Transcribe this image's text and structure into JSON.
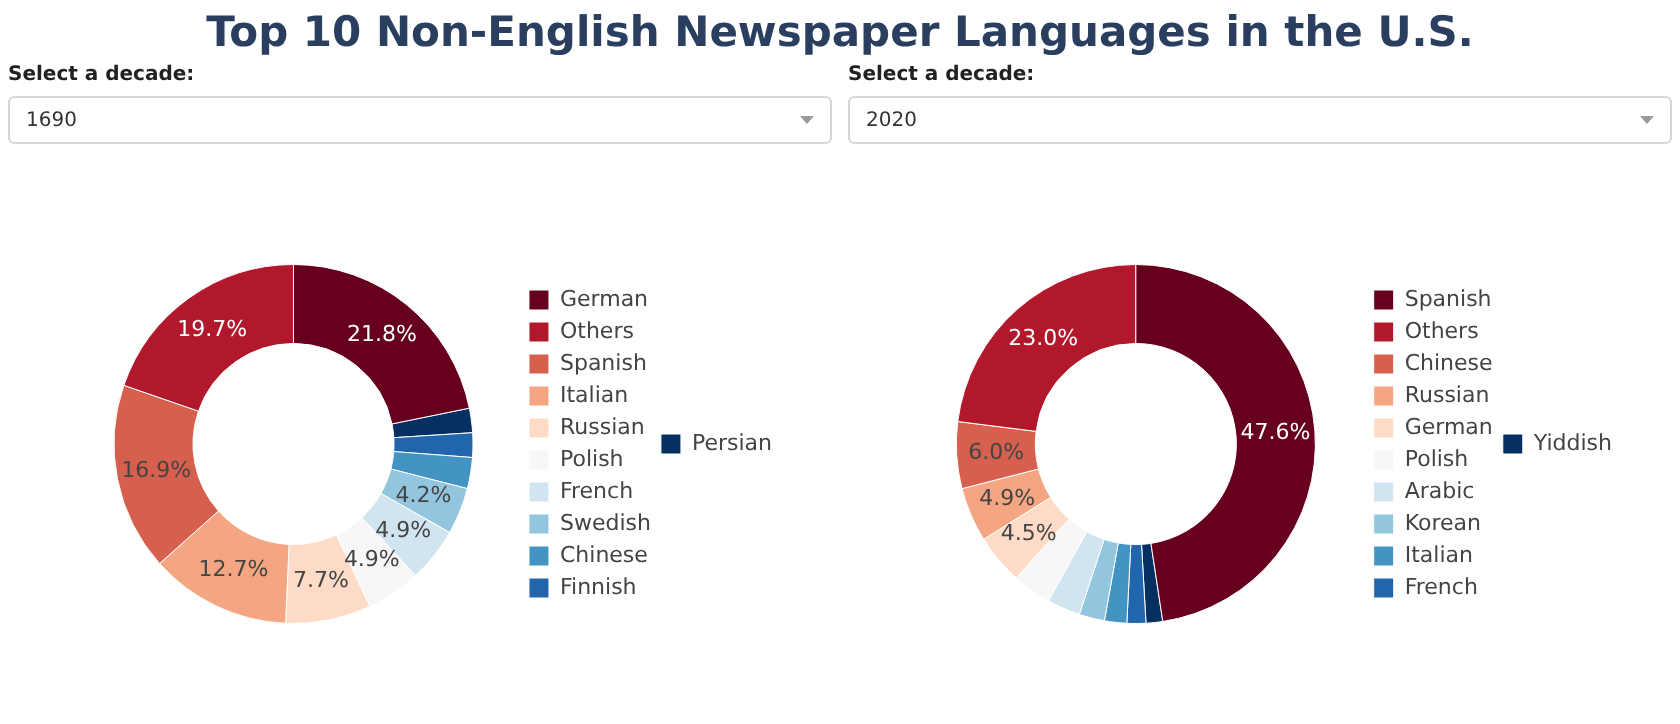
{
  "chart_data": [
    {
      "type": "donut",
      "title": "Top 10 Non-English Newspaper Languages in the U.S.",
      "subtitle": "Select a decade:",
      "annotations": [
        "1690"
      ],
      "categories": [
        "German",
        "Others",
        "Spanish",
        "Italian",
        "Russian",
        "Polish",
        "French",
        "Swedish",
        "Chinese",
        "Finnish",
        "Persian"
      ],
      "values": [
        21.8,
        19.7,
        16.9,
        12.7,
        7.7,
        4.9,
        4.9,
        4.2,
        2.8,
        2.2,
        2.2
      ],
      "value_labels": [
        "21.8%",
        "19.7%",
        "16.9%",
        "12.7%",
        "7.7%",
        "4.9%",
        "4.9%",
        "4.2%",
        null,
        null,
        null
      ],
      "colors": [
        "#67001f",
        "#b2182b",
        "#d6604d",
        "#f4a582",
        "#fddbc7",
        "#f7f7f7",
        "#d1e5f0",
        "#92c5de",
        "#4393c3",
        "#2166ac",
        "#053061"
      ],
      "legend": "right"
    },
    {
      "type": "donut",
      "subtitle": "Select a decade:",
      "annotations": [
        "2020"
      ],
      "categories": [
        "Spanish",
        "Others",
        "Chinese",
        "Russian",
        "German",
        "Polish",
        "Arabic",
        "Korean",
        "Italian",
        "French",
        "Yiddish"
      ],
      "values": [
        47.6,
        23.0,
        6.0,
        4.9,
        4.5,
        3.5,
        3.0,
        2.3,
        2.0,
        1.7,
        1.5
      ],
      "value_labels": [
        "47.6%",
        "23.0%",
        "6.0%",
        "4.9%",
        "4.5%",
        null,
        null,
        null,
        null,
        null,
        null
      ],
      "colors": [
        "#67001f",
        "#b2182b",
        "#d6604d",
        "#f4a582",
        "#fddbc7",
        "#f7f7f7",
        "#d1e5f0",
        "#92c5de",
        "#4393c3",
        "#2166ac",
        "#053061"
      ],
      "legend": "right"
    }
  ]
}
